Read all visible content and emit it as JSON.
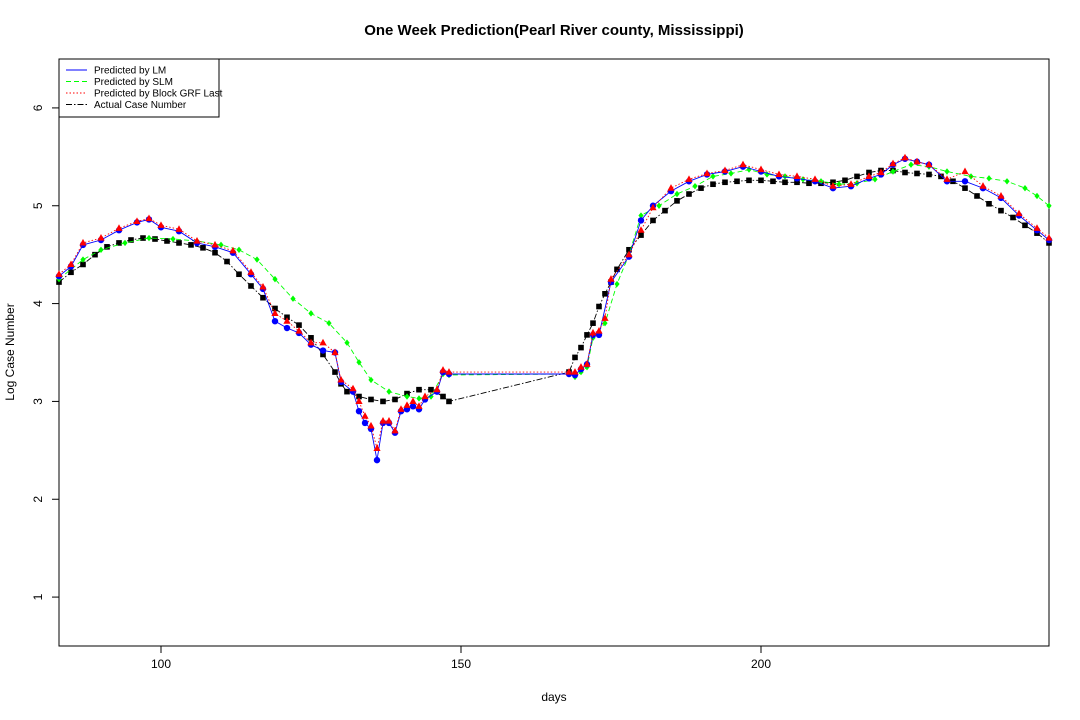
{
  "chart_data": {
    "type": "line",
    "title": "One Week Prediction(Pearl River county, Mississippi)",
    "xlabel": "days",
    "ylabel": "Log Case Number",
    "xlim": [
      83,
      248
    ],
    "ylim": [
      0.5,
      6.5
    ],
    "x_ticks": [
      100,
      150,
      200
    ],
    "y_ticks": [
      1,
      2,
      3,
      4,
      5,
      6
    ],
    "grid": false,
    "legend_position": "top-left",
    "series": [
      {
        "name": "Predicted by LM",
        "color": "#0000ff",
        "line_style": "solid",
        "marker": "circle",
        "points": [
          [
            83,
            4.28
          ],
          [
            85,
            4.38
          ],
          [
            87,
            4.6
          ],
          [
            90,
            4.65
          ],
          [
            93,
            4.75
          ],
          [
            96,
            4.83
          ],
          [
            98,
            4.86
          ],
          [
            100,
            4.78
          ],
          [
            103,
            4.74
          ],
          [
            106,
            4.62
          ],
          [
            109,
            4.58
          ],
          [
            112,
            4.52
          ],
          [
            115,
            4.3
          ],
          [
            117,
            4.15
          ],
          [
            119,
            3.82
          ],
          [
            121,
            3.75
          ],
          [
            123,
            3.7
          ],
          [
            125,
            3.58
          ],
          [
            127,
            3.52
          ],
          [
            129,
            3.5
          ],
          [
            130,
            3.2
          ],
          [
            132,
            3.1
          ],
          [
            133,
            2.9
          ],
          [
            134,
            2.78
          ],
          [
            135,
            2.72
          ],
          [
            136,
            2.4
          ],
          [
            137,
            2.78
          ],
          [
            138,
            2.78
          ],
          [
            139,
            2.68
          ],
          [
            140,
            2.9
          ],
          [
            141,
            2.92
          ],
          [
            142,
            2.95
          ],
          [
            143,
            2.92
          ],
          [
            144,
            3.02
          ],
          [
            146,
            3.1
          ],
          [
            147,
            3.3
          ],
          [
            148,
            3.28
          ],
          [
            168,
            3.28
          ],
          [
            169,
            3.27
          ],
          [
            170,
            3.33
          ],
          [
            171,
            3.38
          ],
          [
            172,
            3.68
          ],
          [
            173,
            3.68
          ],
          [
            175,
            4.22
          ],
          [
            178,
            4.48
          ],
          [
            180,
            4.85
          ],
          [
            182,
            5.0
          ],
          [
            185,
            5.15
          ],
          [
            188,
            5.25
          ],
          [
            191,
            5.32
          ],
          [
            194,
            5.35
          ],
          [
            197,
            5.4
          ],
          [
            200,
            5.35
          ],
          [
            203,
            5.3
          ],
          [
            206,
            5.28
          ],
          [
            209,
            5.25
          ],
          [
            212,
            5.18
          ],
          [
            215,
            5.2
          ],
          [
            218,
            5.28
          ],
          [
            220,
            5.32
          ],
          [
            222,
            5.42
          ],
          [
            224,
            5.48
          ],
          [
            226,
            5.45
          ],
          [
            228,
            5.42
          ],
          [
            231,
            5.25
          ],
          [
            234,
            5.25
          ],
          [
            237,
            5.18
          ],
          [
            240,
            5.08
          ],
          [
            243,
            4.9
          ],
          [
            246,
            4.75
          ],
          [
            248,
            4.65
          ]
        ]
      },
      {
        "name": "Predicted by SLM",
        "color": "#00ff00",
        "line_style": "dashed",
        "marker": "diamond",
        "points": [
          [
            83,
            4.25
          ],
          [
            87,
            4.45
          ],
          [
            90,
            4.55
          ],
          [
            94,
            4.62
          ],
          [
            98,
            4.67
          ],
          [
            102,
            4.66
          ],
          [
            106,
            4.64
          ],
          [
            110,
            4.6
          ],
          [
            113,
            4.55
          ],
          [
            116,
            4.45
          ],
          [
            119,
            4.25
          ],
          [
            122,
            4.05
          ],
          [
            125,
            3.9
          ],
          [
            128,
            3.8
          ],
          [
            131,
            3.6
          ],
          [
            133,
            3.4
          ],
          [
            135,
            3.22
          ],
          [
            138,
            3.1
          ],
          [
            141,
            3.05
          ],
          [
            143,
            3.03
          ],
          [
            145,
            3.05
          ],
          [
            147,
            3.28
          ],
          [
            148,
            3.27
          ],
          [
            168,
            3.28
          ],
          [
            169,
            3.25
          ],
          [
            170,
            3.3
          ],
          [
            171,
            3.35
          ],
          [
            172,
            3.65
          ],
          [
            174,
            3.8
          ],
          [
            176,
            4.2
          ],
          [
            178,
            4.5
          ],
          [
            180,
            4.9
          ],
          [
            183,
            5.0
          ],
          [
            186,
            5.12
          ],
          [
            189,
            5.2
          ],
          [
            192,
            5.3
          ],
          [
            195,
            5.33
          ],
          [
            198,
            5.37
          ],
          [
            201,
            5.32
          ],
          [
            204,
            5.3
          ],
          [
            207,
            5.27
          ],
          [
            210,
            5.25
          ],
          [
            213,
            5.22
          ],
          [
            216,
            5.23
          ],
          [
            219,
            5.27
          ],
          [
            222,
            5.35
          ],
          [
            225,
            5.42
          ],
          [
            228,
            5.4
          ],
          [
            231,
            5.35
          ],
          [
            235,
            5.3
          ],
          [
            238,
            5.28
          ],
          [
            241,
            5.25
          ],
          [
            244,
            5.18
          ],
          [
            246,
            5.1
          ],
          [
            248,
            5.0
          ]
        ]
      },
      {
        "name": "Predicted by Block GRF Last",
        "color": "#ff0000",
        "line_style": "dotted",
        "marker": "triangle",
        "points": [
          [
            83,
            4.3
          ],
          [
            85,
            4.4
          ],
          [
            87,
            4.62
          ],
          [
            90,
            4.67
          ],
          [
            93,
            4.77
          ],
          [
            96,
            4.84
          ],
          [
            98,
            4.87
          ],
          [
            100,
            4.8
          ],
          [
            103,
            4.76
          ],
          [
            106,
            4.64
          ],
          [
            109,
            4.6
          ],
          [
            112,
            4.54
          ],
          [
            115,
            4.32
          ],
          [
            117,
            4.17
          ],
          [
            119,
            3.9
          ],
          [
            121,
            3.82
          ],
          [
            123,
            3.72
          ],
          [
            125,
            3.6
          ],
          [
            127,
            3.6
          ],
          [
            129,
            3.5
          ],
          [
            130,
            3.22
          ],
          [
            132,
            3.13
          ],
          [
            133,
            3.0
          ],
          [
            134,
            2.85
          ],
          [
            135,
            2.75
          ],
          [
            136,
            2.52
          ],
          [
            137,
            2.8
          ],
          [
            138,
            2.8
          ],
          [
            139,
            2.7
          ],
          [
            140,
            2.92
          ],
          [
            141,
            2.96
          ],
          [
            142,
            3.0
          ],
          [
            143,
            2.95
          ],
          [
            144,
            3.05
          ],
          [
            146,
            3.12
          ],
          [
            147,
            3.32
          ],
          [
            148,
            3.3
          ],
          [
            168,
            3.3
          ],
          [
            169,
            3.3
          ],
          [
            170,
            3.35
          ],
          [
            171,
            3.38
          ],
          [
            172,
            3.7
          ],
          [
            173,
            3.72
          ],
          [
            174,
            3.85
          ],
          [
            175,
            4.25
          ],
          [
            178,
            4.5
          ],
          [
            180,
            4.75
          ],
          [
            182,
            4.98
          ],
          [
            185,
            5.18
          ],
          [
            188,
            5.27
          ],
          [
            191,
            5.33
          ],
          [
            194,
            5.36
          ],
          [
            197,
            5.42
          ],
          [
            200,
            5.37
          ],
          [
            203,
            5.32
          ],
          [
            206,
            5.3
          ],
          [
            209,
            5.27
          ],
          [
            212,
            5.2
          ],
          [
            215,
            5.22
          ],
          [
            218,
            5.3
          ],
          [
            220,
            5.34
          ],
          [
            222,
            5.43
          ],
          [
            224,
            5.49
          ],
          [
            226,
            5.45
          ],
          [
            228,
            5.42
          ],
          [
            231,
            5.27
          ],
          [
            234,
            5.35
          ],
          [
            237,
            5.2
          ],
          [
            240,
            5.1
          ],
          [
            243,
            4.92
          ],
          [
            246,
            4.77
          ],
          [
            248,
            4.67
          ]
        ]
      },
      {
        "name": "Actual Case Number",
        "color": "#000000",
        "line_style": "dotdash",
        "marker": "square",
        "points": [
          [
            83,
            4.22
          ],
          [
            85,
            4.32
          ],
          [
            87,
            4.4
          ],
          [
            89,
            4.5
          ],
          [
            91,
            4.58
          ],
          [
            93,
            4.62
          ],
          [
            95,
            4.65
          ],
          [
            97,
            4.67
          ],
          [
            99,
            4.66
          ],
          [
            101,
            4.64
          ],
          [
            103,
            4.62
          ],
          [
            105,
            4.6
          ],
          [
            107,
            4.57
          ],
          [
            109,
            4.52
          ],
          [
            111,
            4.43
          ],
          [
            113,
            4.3
          ],
          [
            115,
            4.18
          ],
          [
            117,
            4.06
          ],
          [
            119,
            3.95
          ],
          [
            121,
            3.86
          ],
          [
            123,
            3.78
          ],
          [
            125,
            3.65
          ],
          [
            127,
            3.48
          ],
          [
            129,
            3.3
          ],
          [
            130,
            3.18
          ],
          [
            131,
            3.1
          ],
          [
            133,
            3.05
          ],
          [
            135,
            3.02
          ],
          [
            137,
            3.0
          ],
          [
            139,
            3.02
          ],
          [
            141,
            3.08
          ],
          [
            143,
            3.12
          ],
          [
            145,
            3.12
          ],
          [
            147,
            3.05
          ],
          [
            148,
            3.0
          ],
          [
            168,
            3.3
          ],
          [
            169,
            3.45
          ],
          [
            170,
            3.55
          ],
          [
            171,
            3.68
          ],
          [
            172,
            3.8
          ],
          [
            173,
            3.97
          ],
          [
            174,
            4.1
          ],
          [
            175,
            4.22
          ],
          [
            176,
            4.35
          ],
          [
            178,
            4.55
          ],
          [
            180,
            4.7
          ],
          [
            182,
            4.85
          ],
          [
            184,
            4.95
          ],
          [
            186,
            5.05
          ],
          [
            188,
            5.12
          ],
          [
            190,
            5.18
          ],
          [
            192,
            5.22
          ],
          [
            194,
            5.24
          ],
          [
            196,
            5.25
          ],
          [
            198,
            5.26
          ],
          [
            200,
            5.26
          ],
          [
            202,
            5.25
          ],
          [
            204,
            5.24
          ],
          [
            206,
            5.24
          ],
          [
            208,
            5.23
          ],
          [
            210,
            5.23
          ],
          [
            212,
            5.24
          ],
          [
            214,
            5.26
          ],
          [
            216,
            5.3
          ],
          [
            218,
            5.34
          ],
          [
            220,
            5.36
          ],
          [
            222,
            5.36
          ],
          [
            224,
            5.34
          ],
          [
            226,
            5.33
          ],
          [
            228,
            5.32
          ],
          [
            230,
            5.3
          ],
          [
            232,
            5.25
          ],
          [
            234,
            5.18
          ],
          [
            236,
            5.1
          ],
          [
            238,
            5.02
          ],
          [
            240,
            4.95
          ],
          [
            242,
            4.88
          ],
          [
            244,
            4.8
          ],
          [
            246,
            4.72
          ],
          [
            248,
            4.62
          ]
        ]
      }
    ]
  }
}
